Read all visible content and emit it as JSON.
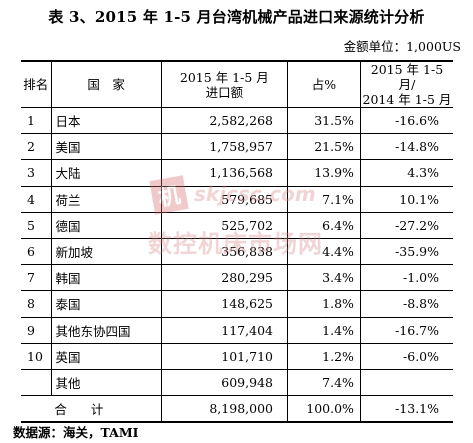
{
  "title": "表 3、2015 年 1-5 月台湾机械产品进口来源统计分析",
  "unit": "金额单位：1,000US",
  "headers": {
    "rank": "排名",
    "country": "国　家",
    "amount": [
      "2015 年 1-5 月",
      "进口额"
    ],
    "share": "占%",
    "growth": [
      "2015 年 1-5 月/",
      "2014 年 1-5 月"
    ]
  },
  "rows": [
    {
      "rank": "1",
      "country": "日本",
      "amount": "2,582,268",
      "share": "31.5%",
      "growth": "-16.6%"
    },
    {
      "rank": "2",
      "country": "美国",
      "amount": "1,758,957",
      "share": "21.5%",
      "growth": "-14.8%"
    },
    {
      "rank": "3",
      "country": "大陆",
      "amount": "1,136,568",
      "share": "13.9%",
      "growth": "4.3%"
    },
    {
      "rank": "4",
      "country": "荷兰",
      "amount": "579,685",
      "share": "7.1%",
      "growth": "10.1%"
    },
    {
      "rank": "5",
      "country": "德国",
      "amount": "525,702",
      "share": "6.4%",
      "growth": "-27.2%"
    },
    {
      "rank": "6",
      "country": "新加坡",
      "amount": "356,838",
      "share": "4.4%",
      "growth": "-35.9%"
    },
    {
      "rank": "7",
      "country": "韩国",
      "amount": "280,295",
      "share": "3.4%",
      "growth": "-1.0%"
    },
    {
      "rank": "8",
      "country": "泰国",
      "amount": "148,625",
      "share": "1.8%",
      "growth": "-8.8%"
    },
    {
      "rank": "9",
      "country": "其他东协四国",
      "amount": "117,404",
      "share": "1.4%",
      "growth": "-16.7%"
    },
    {
      "rank": "10",
      "country": "英国",
      "amount": "101,710",
      "share": "1.2%",
      "growth": "-6.0%"
    },
    {
      "rank": "",
      "country": "其他",
      "amount": "609,948",
      "share": "7.4%",
      "growth": ""
    }
  ],
  "total": {
    "label": "合计",
    "amount": "8,198,000",
    "share": "100.0%",
    "growth": "-13.1%"
  },
  "source": "数据源：海关，TAMI",
  "watermark": {
    "logo": "机",
    "domain": "skjcsc.com",
    "text": "数控机床市场网"
  }
}
